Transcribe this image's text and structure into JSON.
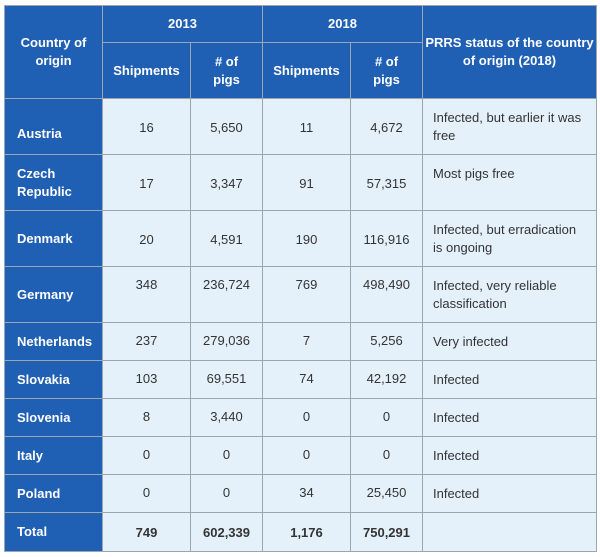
{
  "header": {
    "country": "Country of origin",
    "year_2013": "2013",
    "year_2018": "2018",
    "status": "PRRS status of the country of origin (2018)",
    "shipments": "Shipments",
    "pigs": "# of pigs"
  },
  "rows": [
    {
      "country": "Austria",
      "s2013": "16",
      "p2013": "5,650",
      "s2018": "11",
      "p2018": "4,672",
      "status": "Infected, but earlier it was free"
    },
    {
      "country": "Czech Republic",
      "s2013": "17",
      "p2013": "3,347",
      "s2018": "91",
      "p2018": "57,315",
      "status": "Most pigs free"
    },
    {
      "country": "Denmark",
      "s2013": "20",
      "p2013": "4,591",
      "s2018": "190",
      "p2018": "116,916",
      "status": "Infected, but erradication is ongoing"
    },
    {
      "country": "Germany",
      "s2013": "348",
      "p2013": "236,724",
      "s2018": "769",
      "p2018": "498,490",
      "status": "Infected, very reliable classification"
    },
    {
      "country": "Netherlands",
      "s2013": "237",
      "p2013": "279,036",
      "s2018": "7",
      "p2018": "5,256",
      "status": "Very infected"
    },
    {
      "country": "Slovakia",
      "s2013": "103",
      "p2013": "69,551",
      "s2018": "74",
      "p2018": "42,192",
      "status": "Infected"
    },
    {
      "country": "Slovenia",
      "s2013": "8",
      "p2013": "3,440",
      "s2018": "0",
      "p2018": "0",
      "status": "Infected"
    },
    {
      "country": "Italy",
      "s2013": "0",
      "p2013": "0",
      "s2018": "0",
      "p2018": "0",
      "status": "Infected"
    },
    {
      "country": "Poland",
      "s2013": "0",
      "p2013": "0",
      "s2018": "34",
      "p2018": "25,450",
      "status": "Infected"
    }
  ],
  "total": {
    "label": "Total",
    "s2013": "749",
    "p2013": "602,339",
    "s2018": "1,176",
    "p2018": "750,291",
    "status": ""
  }
}
